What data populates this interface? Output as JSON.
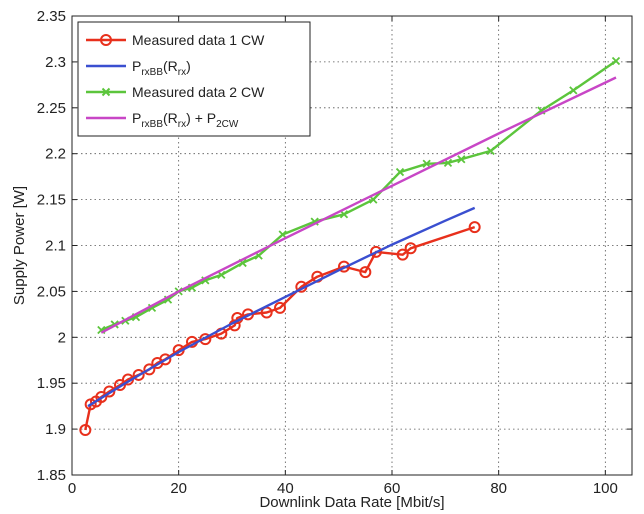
{
  "chart_data": {
    "type": "line",
    "title": "",
    "xlabel": "Downlink Data Rate [Mbit/s]",
    "ylabel": "Supply Power [W]",
    "xlim": [
      0,
      105
    ],
    "ylim": [
      1.85,
      2.35
    ],
    "xticks": [
      0,
      20,
      40,
      60,
      80,
      100
    ],
    "yticks": [
      1.85,
      1.9,
      1.95,
      2,
      2.05,
      2.1,
      2.15,
      2.2,
      2.25,
      2.3,
      2.35
    ],
    "xtick_labels": [
      "0",
      "20",
      "40",
      "60",
      "80",
      "100"
    ],
    "ytick_labels": [
      "1.85",
      "1.9",
      "1.95",
      "2",
      "2.05",
      "2.1",
      "2.15",
      "2.2",
      "2.25",
      "2.3",
      "2.35"
    ],
    "grid": true,
    "legend_position": "top-left",
    "series": [
      {
        "name": "Measured data 1 CW",
        "color": "#e8301c",
        "marker": "circle",
        "x": [
          2.5,
          3.5,
          4.5,
          5.5,
          7,
          9,
          10.5,
          12.5,
          14.5,
          16,
          17.5,
          20,
          22.5,
          25,
          28,
          30.5,
          31,
          33,
          36.5,
          39,
          43,
          46,
          51,
          55,
          57,
          62,
          63.5,
          75.5
        ],
        "y": [
          1.899,
          1.927,
          1.93,
          1.935,
          1.941,
          1.948,
          1.954,
          1.959,
          1.965,
          1.972,
          1.976,
          1.986,
          1.995,
          1.998,
          2.004,
          2.013,
          2.021,
          2.025,
          2.027,
          2.032,
          2.055,
          2.066,
          2.077,
          2.071,
          2.093,
          2.09,
          2.097,
          2.12
        ]
      },
      {
        "name": "PrxBB(Rrx)",
        "color": "#3a4fd0",
        "marker": "none",
        "x": [
          3,
          10,
          20,
          30,
          40,
          50,
          60,
          70,
          75.5
        ],
        "y": [
          1.925,
          1.95,
          1.984,
          2.015,
          2.044,
          2.073,
          2.101,
          2.127,
          2.141
        ]
      },
      {
        "name": "Measured data 2 CW",
        "color": "#5cc53c",
        "marker": "x",
        "x": [
          5.5,
          8,
          10,
          12,
          15,
          18,
          20,
          22.5,
          25,
          28,
          32,
          35,
          39.5,
          45.5,
          51,
          56.5,
          61.5,
          66.5,
          70.5,
          73,
          78.5,
          88,
          94,
          102
        ],
        "y": [
          2.008,
          2.014,
          2.018,
          2.022,
          2.032,
          2.041,
          2.05,
          2.054,
          2.062,
          2.068,
          2.081,
          2.089,
          2.112,
          2.126,
          2.134,
          2.15,
          2.18,
          2.189,
          2.19,
          2.194,
          2.203,
          2.247,
          2.269,
          2.301
        ]
      },
      {
        "name": "PrxBB(Rrx) + P2CW",
        "color": "#c846c6",
        "marker": "none",
        "x": [
          5.5,
          20,
          40,
          60,
          80,
          102
        ],
        "y": [
          2.005,
          2.05,
          2.108,
          2.165,
          2.222,
          2.283
        ]
      }
    ]
  },
  "legend": {
    "items": [
      {
        "label": "Measured data 1 CW"
      },
      {
        "label_main": "P",
        "label_sub": "rxBB",
        "label_mid": "(R",
        "label_sub2": "rx",
        "label_end": ")"
      },
      {
        "label": "Measured data 2 CW"
      },
      {
        "label_main": "P",
        "label_sub": "rxBB",
        "label_mid": "(R",
        "label_sub2": "rx",
        "label_end": ") + P",
        "label_sub3": "2CW"
      }
    ]
  }
}
